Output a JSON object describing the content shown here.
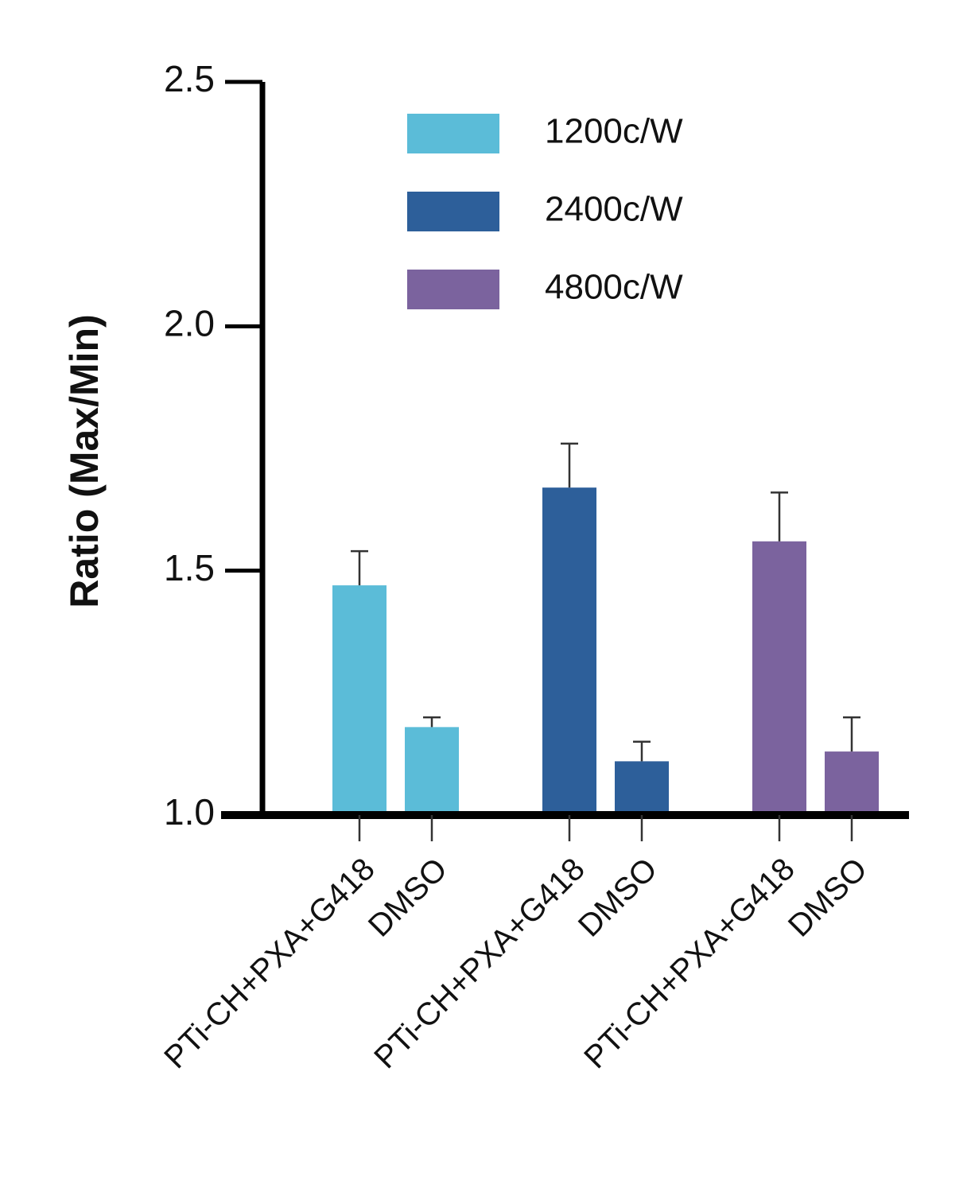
{
  "chart_data": {
    "type": "bar",
    "y_label": "Ratio (Max/Min)",
    "categories": [
      "PTi-CH+PXA+G418",
      "DMSO",
      "PTi-CH+PXA+G418",
      "DMSO",
      "PTi-CH+PXA+G418",
      "DMSO"
    ],
    "series": [
      {
        "name": "1200c/W",
        "color": "#5bbcd8",
        "values": [
          1.47,
          1.18,
          null,
          null,
          null,
          null
        ],
        "errors": [
          0.07,
          0.02,
          null,
          null,
          null,
          null
        ]
      },
      {
        "name": "2400c/W",
        "color": "#2d5f9a",
        "values": [
          null,
          null,
          1.67,
          1.11,
          null,
          null
        ],
        "errors": [
          null,
          null,
          0.09,
          0.04,
          null,
          null
        ]
      },
      {
        "name": "4800c/W",
        "color": "#7b639e",
        "values": [
          null,
          null,
          null,
          null,
          1.56,
          1.13
        ],
        "errors": [
          null,
          null,
          null,
          null,
          0.1,
          0.07
        ]
      }
    ],
    "ylim": [
      1.0,
      2.5
    ],
    "yticks": [
      {
        "value": 1.0,
        "label": "1.0"
      },
      1.5,
      {
        "value": 2.0,
        "label": "2.0"
      },
      2.5
    ],
    "legend": "top-right"
  }
}
